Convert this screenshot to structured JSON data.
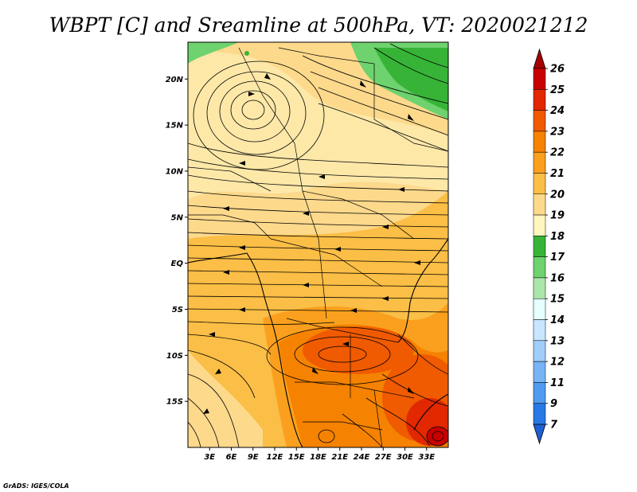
{
  "title": "WBPT [C] and Sreamline at 500hPa, VT: 2020021212",
  "credit": "GrADS: IGES/COLA",
  "map": {
    "lon_range": [
      0,
      36
    ],
    "lat_range": [
      -20,
      24
    ],
    "x_ticks": [
      "3E",
      "6E",
      "9E",
      "12E",
      "15E",
      "18E",
      "21E",
      "24E",
      "27E",
      "30E",
      "33E"
    ],
    "x_tick_values": [
      3,
      6,
      9,
      12,
      15,
      18,
      21,
      24,
      27,
      30,
      33
    ],
    "y_ticks": [
      "20N",
      "15N",
      "10N",
      "5N",
      "EQ",
      "5S",
      "10S",
      "15S"
    ],
    "y_tick_values": [
      20,
      15,
      10,
      5,
      0,
      -5,
      -10,
      -15
    ]
  },
  "colorbar": {
    "labels": [
      "26",
      "25",
      "24",
      "23",
      "22",
      "21",
      "20",
      "19",
      "18",
      "17",
      "16",
      "15",
      "14",
      "13",
      "12",
      "11",
      "9",
      "7"
    ],
    "colors": [
      "#a50000",
      "#c80000",
      "#e12800",
      "#f05a00",
      "#f58200",
      "#faa01e",
      "#fbbe46",
      "#fdd98c",
      "#fff5be",
      "#37b437",
      "#6ed26e",
      "#aae6aa",
      "#e6ffff",
      "#c8e6ff",
      "#a0cdfa",
      "#78b4f5",
      "#509bf0",
      "#2878e6",
      "#1e5fd2"
    ]
  }
}
